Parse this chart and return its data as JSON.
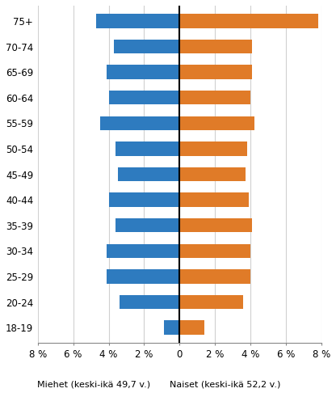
{
  "categories": [
    "18-19",
    "20-24",
    "25-29",
    "30-34",
    "35-39",
    "40-44",
    "45-49",
    "50-54",
    "55-59",
    "60-64",
    "65-69",
    "70-74",
    "75+"
  ],
  "men_values": [
    -0.9,
    -3.4,
    -4.1,
    -4.1,
    -3.6,
    -4.0,
    -3.5,
    -3.6,
    -4.5,
    -4.0,
    -4.1,
    -3.7,
    -4.7
  ],
  "women_values": [
    1.4,
    3.6,
    4.0,
    4.0,
    4.1,
    3.9,
    3.7,
    3.8,
    4.2,
    4.0,
    4.1,
    4.1,
    7.8
  ],
  "men_color": "#2e7bbf",
  "women_color": "#e07b28",
  "xlabel_left": "Miehet (keski-ikä 49,7 v.)",
  "xlabel_right": "Naiset (keski-ikä 52,2 v.)",
  "xlim": [
    -8,
    8
  ],
  "xticks": [
    -8,
    -6,
    -4,
    -2,
    0,
    2,
    4,
    6,
    8
  ],
  "xtick_labels": [
    "8 %",
    "6 %",
    "4 %",
    "2 %",
    "0",
    "2 %",
    "4 %",
    "6 %",
    "8 %"
  ],
  "background_color": "#ffffff",
  "grid_color": "#d0d0d0",
  "bar_height": 0.55
}
